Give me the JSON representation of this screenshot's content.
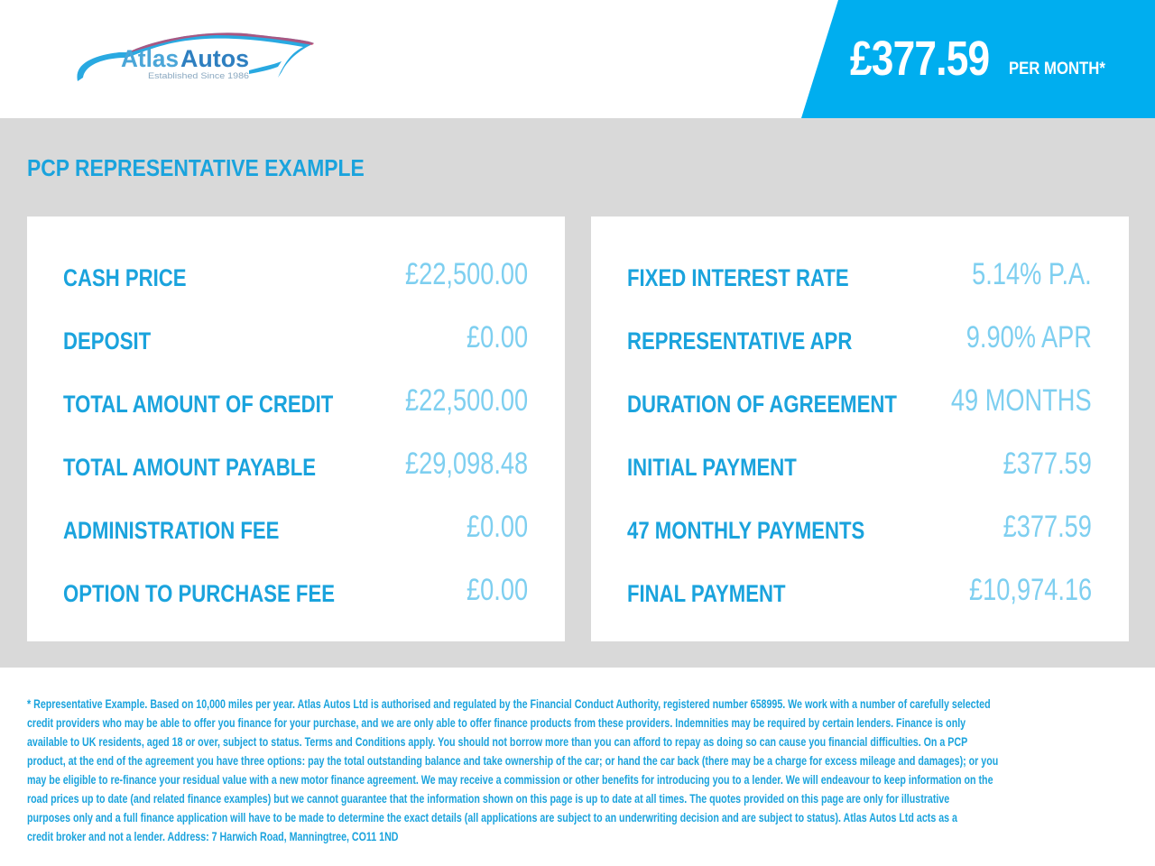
{
  "header": {
    "logo": {
      "name": "AtlasAutos",
      "part1": "Atlas",
      "part2": "Autos",
      "tagline": "Established Since 1986"
    },
    "monthly_price": "£377.59",
    "per_month_label": "PER MONTH*"
  },
  "colors": {
    "brand_blue": "#00aeef",
    "label_blue": "#1aa3dd",
    "value_blue": "#7ecff0",
    "band_gray": "#d9d9d9"
  },
  "section_title": "PCP REPRESENTATIVE EXAMPLE",
  "left_panel": [
    {
      "label": "CASH PRICE",
      "value": "£22,500.00"
    },
    {
      "label": "DEPOSIT",
      "value": "£0.00"
    },
    {
      "label": "TOTAL AMOUNT OF CREDIT",
      "value": "£22,500.00"
    },
    {
      "label": "TOTAL AMOUNT PAYABLE",
      "value": "£29,098.48"
    },
    {
      "label": "ADMINISTRATION FEE",
      "value": "£0.00"
    },
    {
      "label": "OPTION TO PURCHASE FEE",
      "value": "£0.00"
    }
  ],
  "right_panel": [
    {
      "label": "FIXED INTEREST RATE",
      "value": "5.14% P.A."
    },
    {
      "label": "REPRESENTATIVE APR",
      "value": "9.90% APR"
    },
    {
      "label": "DURATION OF AGREEMENT",
      "value": "49 MONTHS"
    },
    {
      "label": "INITIAL PAYMENT",
      "value": "£377.59"
    },
    {
      "label": "47 MONTHLY PAYMENTS",
      "value": "£377.59"
    },
    {
      "label": "FINAL PAYMENT",
      "value": "£10,974.16"
    }
  ],
  "disclaimer_lines": [
    "* Representative Example. Based on 10,000 miles per year. Atlas Autos Ltd is authorised and regulated by the Financial Conduct Authority, registered number 658995. We work with a number of carefully selected",
    "credit providers who may be able to offer you finance for your purchase, and we are only able to offer finance products from these providers. Indemnities may be required by certain lenders. Finance is only",
    "available to UK residents, aged 18 or over, subject to status. Terms and Conditions apply. You should not borrow more than you can afford to repay as doing so can cause you financial difficulties. On a PCP",
    "product, at the end of the agreement you have three options: pay the total outstanding balance and take ownership of the car; or hand the car back (there may be a charge for excess mileage and damages); or you",
    "may be eligible to re-finance your residual value with a new motor finance agreement. We may receive a commission or other benefits for introducing you to a lender. We will endeavour to keep information on the",
    "road prices up to date (and related finance examples) but we cannot guarantee that the information shown on this page is up to date at all times. The quotes provided on this page are only for illustrative",
    "purposes only and a full finance application will have to be made to determine the exact details (all applications are subject to an underwriting decision and are subject to status). Atlas Autos Ltd acts as a",
    "credit broker and not a lender. Address: 7 Harwich Road, Manningtree, CO11 1ND"
  ]
}
